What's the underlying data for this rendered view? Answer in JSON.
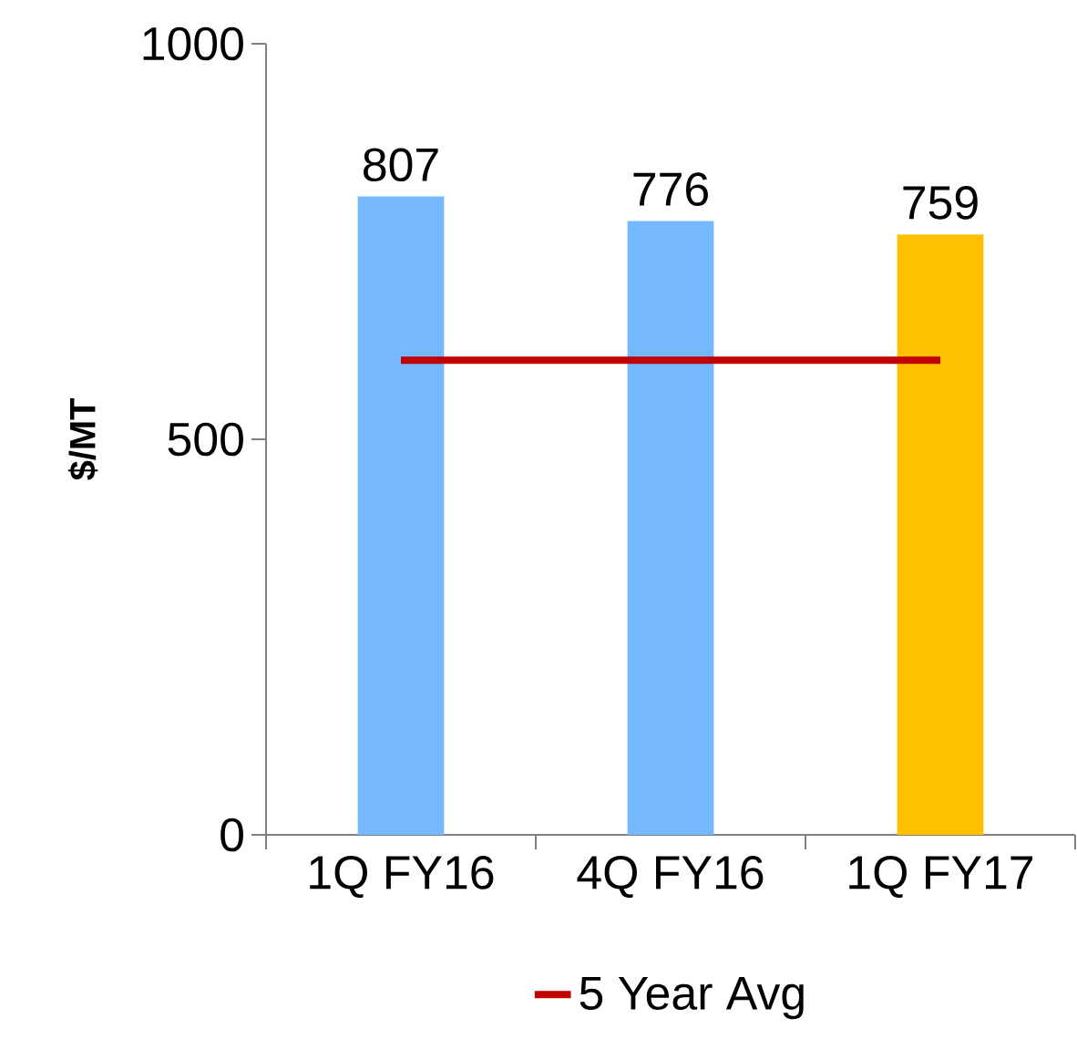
{
  "chart_data": {
    "type": "bar",
    "ylabel": "$/MT",
    "categories": [
      "1Q FY16",
      "4Q FY16",
      "1Q FY17"
    ],
    "series": [
      {
        "colors": [
          "#75b8fd",
          "#75b8fd",
          "#ffc000"
        ],
        "values": [
          807,
          776,
          759
        ],
        "value_labels": [
          "807",
          "776",
          "759"
        ]
      },
      {
        "type": "line",
        "name": "5 Year Avg",
        "color": "#c00000",
        "values": [
          600,
          600,
          600
        ],
        "line_style": "solid"
      }
    ],
    "ylim": [
      0,
      1000
    ],
    "yticks": [
      0,
      500,
      1000
    ],
    "grid": false,
    "legend": "bottom",
    "marker": "none"
  }
}
